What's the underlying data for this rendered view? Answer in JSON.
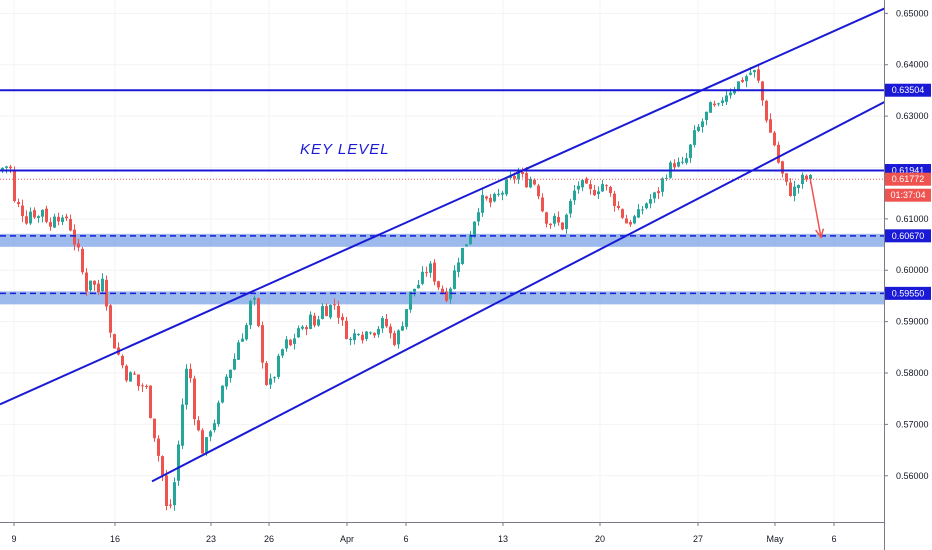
{
  "chart_data": {
    "type": "candlestick",
    "y_axis": {
      "range": [
        0.551,
        0.6526
      ],
      "ticks": [
        "0.65000",
        "0.64000",
        "0.63000",
        "0.62000",
        "0.61000",
        "0.60000",
        "0.59000",
        "0.58000",
        "0.57000",
        "0.56000"
      ]
    },
    "x_axis": {
      "range": [
        0,
        884
      ],
      "ticks": [
        {
          "label": "9",
          "x": 14
        },
        {
          "label": "16",
          "x": 115
        },
        {
          "label": "23",
          "x": 211
        },
        {
          "label": "26",
          "x": 269
        },
        {
          "label": "Apr",
          "x": 347
        },
        {
          "label": "6",
          "x": 406
        },
        {
          "label": "13",
          "x": 503
        },
        {
          "label": "20",
          "x": 600
        },
        {
          "label": "27",
          "x": 698
        },
        {
          "label": "May",
          "x": 775
        },
        {
          "label": "6",
          "x": 834
        }
      ]
    },
    "price_path": [
      [
        0,
        0.619
      ],
      [
        8,
        0.6205
      ],
      [
        14,
        0.6195
      ],
      [
        18,
        0.611
      ],
      [
        22,
        0.613
      ],
      [
        28,
        0.6095
      ],
      [
        34,
        0.612
      ],
      [
        40,
        0.61
      ],
      [
        46,
        0.6125
      ],
      [
        52,
        0.6075
      ],
      [
        58,
        0.612
      ],
      [
        64,
        0.609
      ],
      [
        70,
        0.6105
      ],
      [
        76,
        0.606
      ],
      [
        82,
        0.603
      ],
      [
        88,
        0.596
      ],
      [
        94,
        0.599
      ],
      [
        100,
        0.595
      ],
      [
        106,
        0.6
      ],
      [
        112,
        0.588
      ],
      [
        118,
        0.585
      ],
      [
        124,
        0.582
      ],
      [
        130,
        0.579
      ],
      [
        136,
        0.58
      ],
      [
        142,
        0.577
      ],
      [
        148,
        0.578
      ],
      [
        154,
        0.571
      ],
      [
        160,
        0.565
      ],
      [
        166,
        0.559
      ],
      [
        170,
        0.552
      ],
      [
        174,
        0.555
      ],
      [
        178,
        0.56
      ],
      [
        182,
        0.568
      ],
      [
        186,
        0.576
      ],
      [
        190,
        0.582
      ],
      [
        194,
        0.578
      ],
      [
        198,
        0.57
      ],
      [
        202,
        0.568
      ],
      [
        206,
        0.564
      ],
      [
        212,
        0.569
      ],
      [
        218,
        0.571
      ],
      [
        224,
        0.576
      ],
      [
        230,
        0.58
      ],
      [
        236,
        0.582
      ],
      [
        242,
        0.587
      ],
      [
        248,
        0.588
      ],
      [
        252,
        0.593
      ],
      [
        256,
        0.595
      ],
      [
        260,
        0.59
      ],
      [
        264,
        0.584
      ],
      [
        270,
        0.577
      ],
      [
        276,
        0.579
      ],
      [
        282,
        0.583
      ],
      [
        288,
        0.586
      ],
      [
        294,
        0.585
      ],
      [
        300,
        0.589
      ],
      [
        306,
        0.588
      ],
      [
        312,
        0.591
      ],
      [
        318,
        0.589
      ],
      [
        324,
        0.593
      ],
      [
        330,
        0.592
      ],
      [
        336,
        0.594
      ],
      [
        342,
        0.591
      ],
      [
        348,
        0.588
      ],
      [
        354,
        0.586
      ],
      [
        360,
        0.589
      ],
      [
        366,
        0.587
      ],
      [
        372,
        0.589
      ],
      [
        378,
        0.588
      ],
      [
        384,
        0.59
      ],
      [
        390,
        0.589
      ],
      [
        396,
        0.586
      ],
      [
        402,
        0.588
      ],
      [
        408,
        0.592
      ],
      [
        414,
        0.596
      ],
      [
        420,
        0.597
      ],
      [
        426,
        0.599
      ],
      [
        432,
        0.601
      ],
      [
        438,
        0.598
      ],
      [
        444,
        0.596
      ],
      [
        450,
        0.595
      ],
      [
        456,
        0.599
      ],
      [
        462,
        0.603
      ],
      [
        468,
        0.605
      ],
      [
        474,
        0.608
      ],
      [
        480,
        0.612
      ],
      [
        486,
        0.614
      ],
      [
        492,
        0.613
      ],
      [
        498,
        0.614
      ],
      [
        504,
        0.615
      ],
      [
        510,
        0.617
      ],
      [
        516,
        0.618
      ],
      [
        522,
        0.619
      ],
      [
        528,
        0.617
      ],
      [
        534,
        0.618
      ],
      [
        540,
        0.616
      ],
      [
        546,
        0.611
      ],
      [
        552,
        0.609
      ],
      [
        558,
        0.61
      ],
      [
        564,
        0.608
      ],
      [
        570,
        0.611
      ],
      [
        576,
        0.615
      ],
      [
        582,
        0.617
      ],
      [
        588,
        0.616
      ],
      [
        594,
        0.615
      ],
      [
        600,
        0.616
      ],
      [
        606,
        0.617
      ],
      [
        612,
        0.615
      ],
      [
        618,
        0.613
      ],
      [
        624,
        0.611
      ],
      [
        630,
        0.609
      ],
      [
        636,
        0.61
      ],
      [
        642,
        0.611
      ],
      [
        648,
        0.613
      ],
      [
        654,
        0.614
      ],
      [
        660,
        0.615
      ],
      [
        666,
        0.618
      ],
      [
        672,
        0.62
      ],
      [
        678,
        0.621
      ],
      [
        684,
        0.62
      ],
      [
        690,
        0.622
      ],
      [
        696,
        0.626
      ],
      [
        702,
        0.628
      ],
      [
        708,
        0.63
      ],
      [
        714,
        0.632
      ],
      [
        720,
        0.631
      ],
      [
        726,
        0.634
      ],
      [
        732,
        0.635
      ],
      [
        738,
        0.636
      ],
      [
        744,
        0.637
      ],
      [
        750,
        0.638
      ],
      [
        756,
        0.639
      ],
      [
        762,
        0.636
      ],
      [
        766,
        0.632
      ],
      [
        770,
        0.629
      ],
      [
        774,
        0.626
      ],
      [
        778,
        0.624
      ],
      [
        782,
        0.62
      ],
      [
        786,
        0.618
      ],
      [
        790,
        0.616
      ],
      [
        794,
        0.615
      ],
      [
        798,
        0.616
      ],
      [
        802,
        0.617
      ],
      [
        806,
        0.618
      ],
      [
        810,
        0.6177
      ]
    ],
    "horizontal_levels": [
      {
        "value": 0.63504,
        "label": "0.63504",
        "style": "solid",
        "zone": false,
        "color": "#1a1ad6"
      },
      {
        "value": 0.61941,
        "label": "0.61941",
        "style": "solid",
        "zone": false,
        "color": "#1a1ad6"
      },
      {
        "value": 0.6067,
        "label": "0.60670",
        "style": "dashed",
        "zone": true,
        "color": "#1a1ad6"
      },
      {
        "value": 0.5955,
        "label": "0.59550",
        "style": "dashed",
        "zone": true,
        "color": "#1a1ad6"
      }
    ],
    "current_price": {
      "value": 0.61772,
      "label": "0.61772",
      "countdown": "01:37:04",
      "color": "#ef5350"
    },
    "annotation": {
      "text": "KEY  LEVEL",
      "value": 0.6226,
      "x": 300
    },
    "channel_upper": [
      [
        0,
        0.5739
      ],
      [
        892,
        0.6516
      ]
    ],
    "channel_lower": [
      [
        152,
        0.5589
      ],
      [
        892,
        0.6335
      ]
    ],
    "projection_arrow": [
      [
        810,
        0.618
      ],
      [
        821,
        0.6064
      ]
    ],
    "colors": {
      "up": "#26a69a",
      "down": "#ef5350",
      "line": "#1a1ad6",
      "zone": "#7ba3e6",
      "axis": "#787b86",
      "grid": "#f3f3f3"
    }
  }
}
